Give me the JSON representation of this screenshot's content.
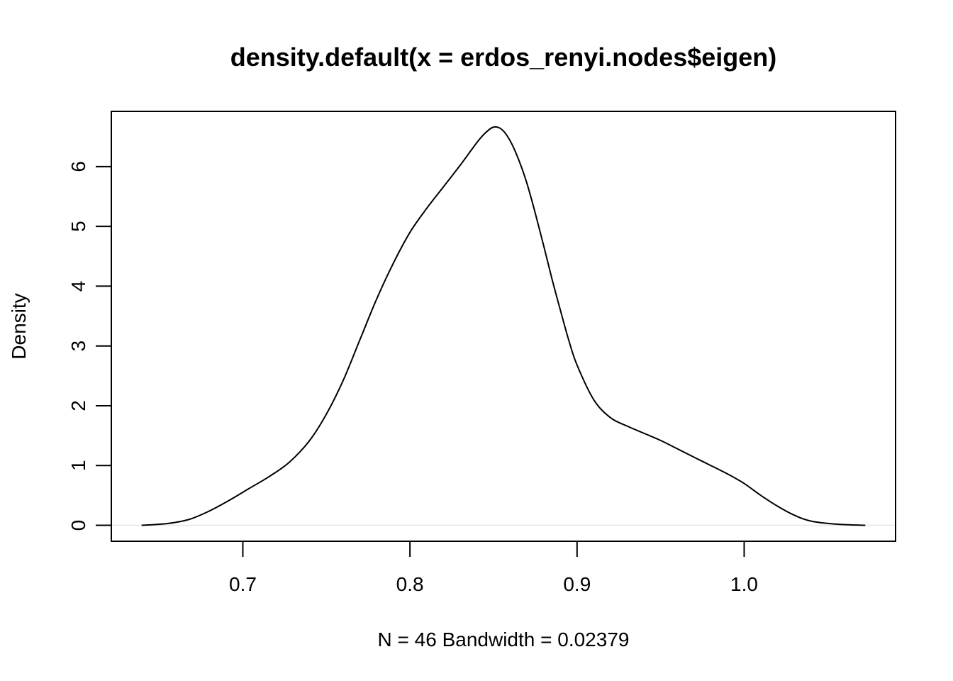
{
  "chart_data": {
    "type": "line",
    "title": "density.default(x = erdos_renyi.nodes$eigen)",
    "xlabel": "N = 46   Bandwidth = 0.02379",
    "ylabel": "Density",
    "xlim": [
      0.6213,
      1.0906
    ],
    "ylim": [
      -0.2664,
      6.9236
    ],
    "x_ticks": [
      0.7,
      0.8,
      0.9,
      1.0
    ],
    "x_tick_labels": [
      "0.7",
      "0.8",
      "0.9",
      "1.0"
    ],
    "y_ticks": [
      0,
      1,
      2,
      3,
      4,
      5,
      6
    ],
    "y_tick_labels": [
      "0",
      "1",
      "2",
      "3",
      "4",
      "5",
      "6"
    ],
    "grid": false,
    "zero_line_color": "#e6e6e6",
    "line_color": "#000000",
    "series": [
      {
        "x": [
          0.6394,
          0.655,
          0.668,
          0.68,
          0.692,
          0.704,
          0.716,
          0.728,
          0.74,
          0.75,
          0.76,
          0.77,
          0.78,
          0.79,
          0.8,
          0.81,
          0.82,
          0.83,
          0.84,
          0.845,
          0.85,
          0.855,
          0.86,
          0.865,
          0.87,
          0.875,
          0.88,
          0.885,
          0.89,
          0.895,
          0.9,
          0.91,
          0.92,
          0.93,
          0.94,
          0.95,
          0.96,
          0.97,
          0.98,
          0.99,
          1.0,
          1.01,
          1.02,
          1.03,
          1.04,
          1.055,
          1.0725
        ],
        "y": [
          0.0,
          0.03,
          0.1,
          0.24,
          0.42,
          0.62,
          0.82,
          1.06,
          1.42,
          1.86,
          2.42,
          3.1,
          3.78,
          4.38,
          4.9,
          5.3,
          5.66,
          6.02,
          6.4,
          6.56,
          6.66,
          6.62,
          6.43,
          6.12,
          5.72,
          5.22,
          4.68,
          4.12,
          3.6,
          3.1,
          2.68,
          2.1,
          1.8,
          1.66,
          1.54,
          1.42,
          1.28,
          1.14,
          1.0,
          0.86,
          0.7,
          0.5,
          0.32,
          0.17,
          0.07,
          0.02,
          0.0
        ]
      }
    ]
  }
}
